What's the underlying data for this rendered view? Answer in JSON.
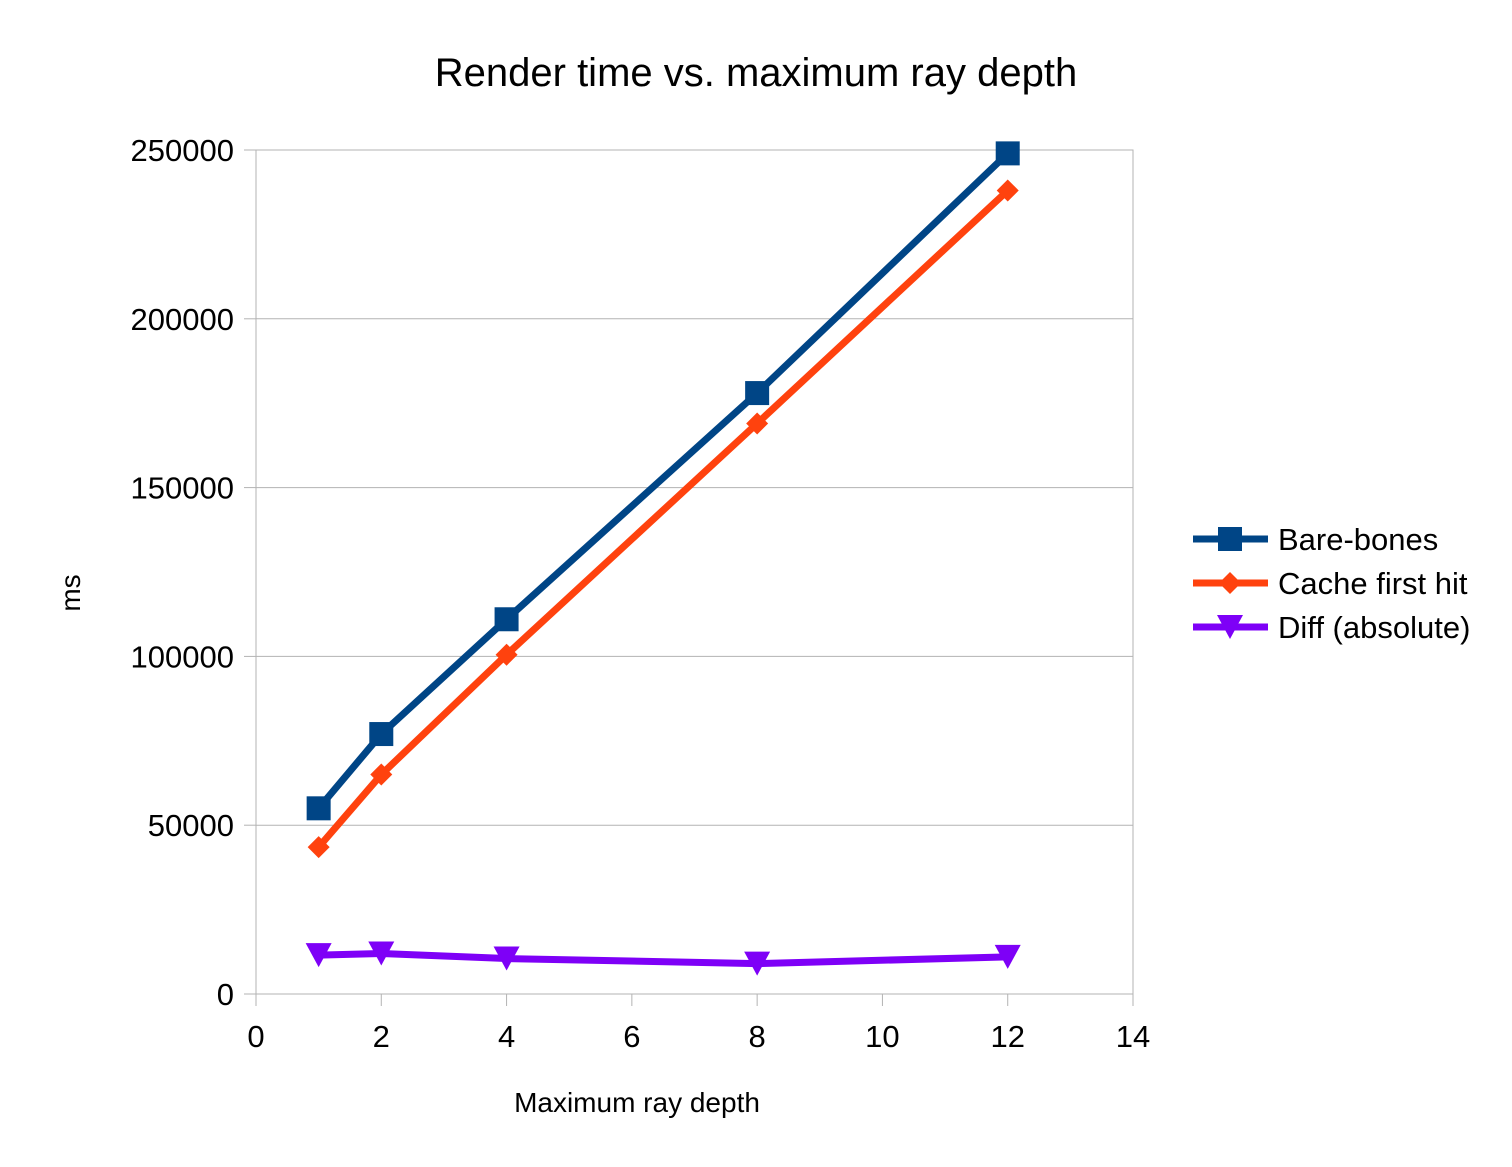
{
  "chart_data": {
    "type": "line",
    "title": "Render time vs. maximum ray depth",
    "xlabel": "Maximum ray depth",
    "ylabel": "ms",
    "xlim": [
      0,
      14
    ],
    "ylim": [
      0,
      250000
    ],
    "xticks": [
      "0",
      "2",
      "4",
      "6",
      "8",
      "10",
      "12",
      "14"
    ],
    "yticks": [
      "0",
      "50000",
      "100000",
      "150000",
      "200000",
      "250000"
    ],
    "grid": "horizontal",
    "legend_position": "right",
    "x": [
      1,
      2,
      4,
      8,
      12
    ],
    "series": [
      {
        "name": "Bare-bones",
        "color": "#004586",
        "marker": "square",
        "values": [
          55000,
          77000,
          111000,
          178000,
          249000
        ]
      },
      {
        "name": "Cache first hit",
        "color": "#ff420e",
        "marker": "diamond",
        "values": [
          43500,
          65000,
          100500,
          169000,
          238000
        ]
      },
      {
        "name": "Diff (absolute)",
        "color": "#7e00f7",
        "marker": "triangle-down",
        "values": [
          11500,
          12000,
          10500,
          9000,
          11000
        ]
      }
    ]
  }
}
